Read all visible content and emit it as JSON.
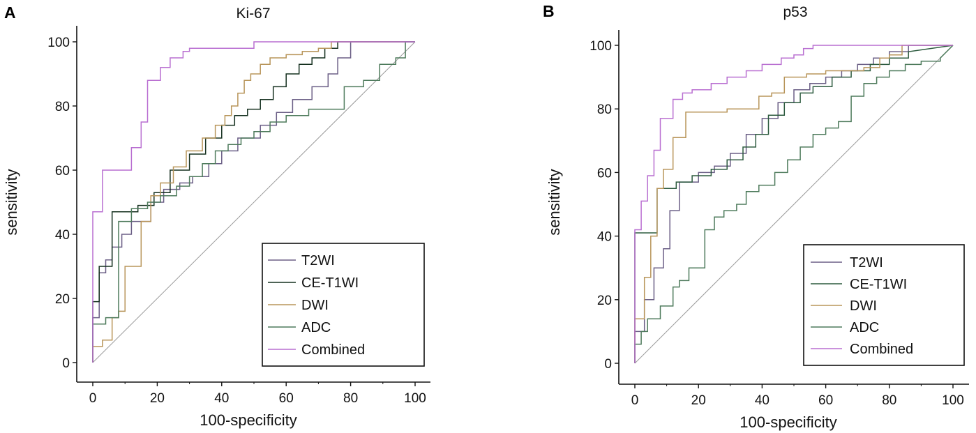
{
  "chart_data": [
    {
      "type": "line",
      "panel": "A",
      "title": "Ki-67",
      "xlabel": "100-specificity",
      "ylabel": "sensitivity",
      "xlim": [
        0,
        100
      ],
      "ylim": [
        0,
        100
      ],
      "xticks": [
        0,
        20,
        40,
        60,
        80,
        100
      ],
      "yticks": [
        0,
        20,
        40,
        60,
        80,
        100
      ],
      "legend_position": "bottom-right",
      "diagonal": true,
      "series": [
        {
          "name": "T2WI",
          "color": "#6b5f86",
          "x": [
            0,
            0,
            2,
            2,
            4,
            4,
            6,
            6,
            9,
            9,
            12,
            12,
            18,
            18,
            22,
            22,
            27,
            27,
            31,
            31,
            36,
            36,
            40,
            40,
            45,
            45,
            52,
            52,
            57,
            57,
            62,
            62,
            68,
            68,
            73,
            73,
            76,
            76,
            80,
            80,
            100
          ],
          "y": [
            0,
            14,
            14,
            28,
            28,
            32,
            32,
            36,
            36,
            40,
            40,
            44,
            44,
            50,
            50,
            54,
            54,
            56,
            56,
            58,
            58,
            62,
            62,
            66,
            66,
            70,
            70,
            74,
            74,
            78,
            78,
            82,
            82,
            86,
            86,
            90,
            90,
            95,
            95,
            100,
            100
          ]
        },
        {
          "name": "CE-T1WI",
          "color": "#15301f",
          "x": [
            0,
            0,
            2,
            2,
            6,
            6,
            14,
            14,
            19,
            19,
            24,
            24,
            30,
            30,
            35,
            35,
            40,
            40,
            44,
            44,
            48,
            48,
            52,
            52,
            56,
            56,
            60,
            60,
            64,
            64,
            68,
            68,
            72,
            72,
            76,
            76,
            100
          ],
          "y": [
            0,
            19,
            19,
            30,
            30,
            47,
            47,
            49,
            49,
            53,
            53,
            60,
            60,
            65,
            65,
            70,
            70,
            74,
            74,
            77,
            77,
            79,
            79,
            82,
            82,
            86,
            86,
            90,
            90,
            93,
            93,
            95,
            95,
            98,
            98,
            100,
            100
          ]
        },
        {
          "name": "DWI",
          "color": "#b8955a",
          "x": [
            0,
            0,
            3,
            3,
            6,
            6,
            8,
            8,
            10,
            10,
            15,
            15,
            18,
            18,
            21,
            21,
            25,
            25,
            29,
            29,
            34,
            34,
            38,
            38,
            41,
            41,
            43,
            43,
            45,
            45,
            47,
            47,
            49,
            49,
            52,
            52,
            55,
            55,
            60,
            60,
            65,
            65,
            70,
            70,
            74,
            74,
            100
          ],
          "y": [
            0,
            5,
            5,
            7,
            7,
            14,
            14,
            16,
            16,
            30,
            30,
            44,
            44,
            52,
            52,
            56,
            56,
            61,
            61,
            66,
            66,
            70,
            70,
            74,
            74,
            77,
            77,
            80,
            80,
            84,
            84,
            88,
            88,
            90,
            90,
            93,
            93,
            95,
            95,
            96,
            96,
            97,
            97,
            98,
            98,
            100,
            100
          ]
        },
        {
          "name": "ADC",
          "color": "#4d7a5b",
          "x": [
            0,
            0,
            4,
            4,
            8,
            8,
            12,
            12,
            17,
            17,
            21,
            21,
            26,
            26,
            30,
            30,
            34,
            34,
            38,
            38,
            42,
            42,
            46,
            46,
            50,
            50,
            55,
            55,
            60,
            60,
            67,
            67,
            73,
            73,
            78,
            78,
            84,
            84,
            89,
            89,
            94,
            94,
            97,
            97,
            100
          ],
          "y": [
            0,
            12,
            12,
            14,
            14,
            44,
            44,
            48,
            48,
            50,
            50,
            52,
            52,
            55,
            55,
            58,
            58,
            62,
            62,
            66,
            66,
            68,
            68,
            70,
            70,
            72,
            72,
            75,
            75,
            77,
            77,
            79,
            79,
            79,
            79,
            86,
            86,
            88,
            88,
            93,
            93,
            95,
            95,
            100,
            100
          ]
        },
        {
          "name": "Combined",
          "color": "#b96fd1",
          "x": [
            0,
            0,
            3,
            3,
            12,
            12,
            15,
            15,
            17,
            17,
            21,
            21,
            24,
            24,
            28,
            28,
            30,
            30,
            50,
            50,
            100
          ],
          "y": [
            0,
            47,
            47,
            60,
            60,
            67,
            67,
            75,
            75,
            88,
            88,
            92,
            92,
            95,
            95,
            97,
            97,
            98,
            98,
            100,
            100
          ]
        }
      ]
    },
    {
      "type": "line",
      "panel": "B",
      "title": "p53",
      "xlabel": "100-specificity",
      "ylabel": "sensitivity",
      "xlim": [
        0,
        100
      ],
      "ylim": [
        0,
        100
      ],
      "xticks": [
        0,
        20,
        40,
        60,
        80,
        100
      ],
      "yticks": [
        0,
        20,
        40,
        60,
        80,
        100
      ],
      "legend_position": "bottom-right",
      "diagonal": true,
      "series": [
        {
          "name": "T2WI",
          "color": "#6b5f86",
          "x": [
            0,
            0,
            3,
            3,
            6,
            6,
            9,
            9,
            11,
            11,
            14,
            14,
            20,
            20,
            25,
            25,
            30,
            30,
            35,
            35,
            40,
            40,
            45,
            45,
            50,
            50,
            55,
            55,
            60,
            60,
            65,
            65,
            70,
            70,
            75,
            75,
            80,
            80,
            86,
            86,
            100
          ],
          "y": [
            0,
            10,
            10,
            20,
            20,
            30,
            30,
            36,
            36,
            48,
            48,
            57,
            57,
            60,
            60,
            62,
            62,
            66,
            66,
            72,
            72,
            77,
            77,
            82,
            82,
            86,
            86,
            88,
            88,
            90,
            90,
            92,
            92,
            94,
            94,
            96,
            96,
            98,
            98,
            100,
            100
          ]
        },
        {
          "name": "CE-T1WI",
          "color": "#2d5b3f",
          "x": [
            0,
            0,
            7,
            7,
            13,
            13,
            18,
            18,
            24,
            24,
            29,
            29,
            34,
            34,
            38,
            38,
            42,
            42,
            47,
            47,
            52,
            52,
            56,
            56,
            62,
            62,
            68,
            68,
            74,
            74,
            80,
            80,
            86,
            86,
            100
          ],
          "y": [
            0,
            41,
            41,
            55,
            55,
            57,
            57,
            59,
            59,
            61,
            61,
            64,
            64,
            68,
            68,
            72,
            72,
            78,
            78,
            82,
            82,
            85,
            85,
            87,
            87,
            90,
            90,
            92,
            92,
            94,
            94,
            96,
            96,
            98,
            100
          ]
        },
        {
          "name": "DWI",
          "color": "#b8955a",
          "x": [
            0,
            0,
            3,
            3,
            5,
            5,
            7,
            7,
            9,
            9,
            12,
            12,
            16,
            16,
            29,
            29,
            39,
            39,
            43,
            43,
            47,
            47,
            54,
            54,
            60,
            60,
            72,
            72,
            77,
            77,
            80,
            80,
            84,
            84,
            100
          ],
          "y": [
            0,
            14,
            14,
            27,
            27,
            40,
            40,
            55,
            55,
            61,
            61,
            71,
            71,
            79,
            79,
            80,
            80,
            84,
            84,
            85,
            85,
            90,
            90,
            91,
            91,
            92,
            92,
            93,
            93,
            96,
            96,
            97,
            97,
            100,
            100
          ]
        },
        {
          "name": "ADC",
          "color": "#4d7a5b",
          "x": [
            0,
            0,
            2,
            2,
            4,
            4,
            8,
            8,
            12,
            12,
            14,
            14,
            17,
            17,
            22,
            22,
            25,
            25,
            28,
            28,
            32,
            32,
            35,
            35,
            39,
            39,
            44,
            44,
            48,
            48,
            52,
            52,
            56,
            56,
            60,
            60,
            64,
            64,
            68,
            68,
            72,
            72,
            76,
            76,
            80,
            80,
            85,
            85,
            90,
            90,
            96,
            96,
            100
          ],
          "y": [
            0,
            6,
            6,
            10,
            10,
            14,
            14,
            18,
            18,
            24,
            24,
            26,
            26,
            30,
            30,
            42,
            42,
            46,
            46,
            48,
            48,
            50,
            50,
            54,
            54,
            56,
            56,
            60,
            60,
            64,
            64,
            68,
            68,
            72,
            72,
            74,
            74,
            76,
            76,
            84,
            84,
            88,
            88,
            90,
            90,
            92,
            92,
            94,
            94,
            95,
            95,
            96,
            100
          ]
        },
        {
          "name": "Combined",
          "color": "#b96fd1",
          "x": [
            0,
            0,
            2,
            2,
            4,
            4,
            6,
            6,
            8,
            8,
            12,
            12,
            15,
            15,
            18,
            18,
            24,
            24,
            29,
            29,
            35,
            35,
            40,
            40,
            46,
            46,
            50,
            50,
            53,
            53,
            56,
            56,
            60,
            60,
            100
          ],
          "y": [
            0,
            42,
            42,
            51,
            51,
            59,
            59,
            67,
            67,
            77,
            77,
            83,
            83,
            85,
            85,
            86,
            86,
            88,
            88,
            90,
            90,
            92,
            92,
            94,
            94,
            96,
            96,
            97,
            97,
            99,
            99,
            100,
            100,
            100,
            100
          ]
        }
      ]
    }
  ]
}
